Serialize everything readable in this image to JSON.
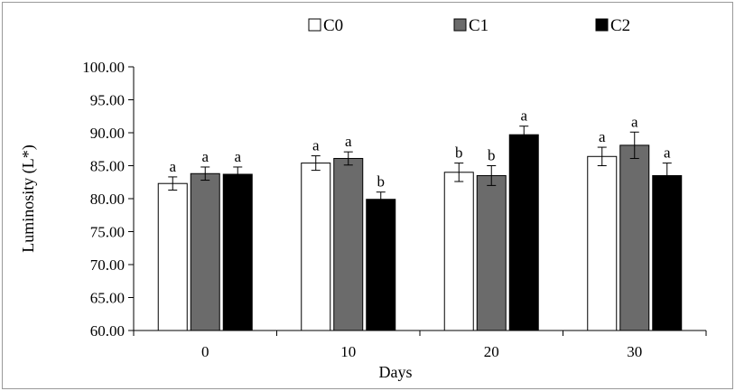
{
  "chart_data": {
    "type": "bar",
    "title": "",
    "xlabel": "Days",
    "ylabel": "Luminosity (L*)",
    "ylim": [
      60,
      100
    ],
    "ytick_step": 5,
    "yticks": [
      "60.00",
      "65.00",
      "70.00",
      "75.00",
      "80.00",
      "85.00",
      "90.00",
      "95.00",
      "100.00"
    ],
    "categories": [
      "0",
      "10",
      "20",
      "30"
    ],
    "legend_position": "top",
    "grid": false,
    "series": [
      {
        "name": "C0",
        "color": "#ffffff",
        "values": [
          82.3,
          85.4,
          84.0,
          86.4
        ],
        "errors": [
          1.0,
          1.1,
          1.4,
          1.4
        ],
        "letters": [
          "a",
          "a",
          "b",
          "a"
        ]
      },
      {
        "name": "C1",
        "color": "#6b6b6b",
        "values": [
          83.8,
          86.1,
          83.5,
          88.1
        ],
        "errors": [
          1.0,
          1.0,
          1.5,
          2.0
        ],
        "letters": [
          "a",
          "a",
          "b",
          "a"
        ]
      },
      {
        "name": "C2",
        "color": "#000000",
        "values": [
          83.7,
          79.9,
          89.7,
          83.5
        ],
        "errors": [
          1.1,
          1.1,
          1.3,
          1.9
        ],
        "letters": [
          "a",
          "b",
          "a",
          "a"
        ]
      }
    ]
  }
}
